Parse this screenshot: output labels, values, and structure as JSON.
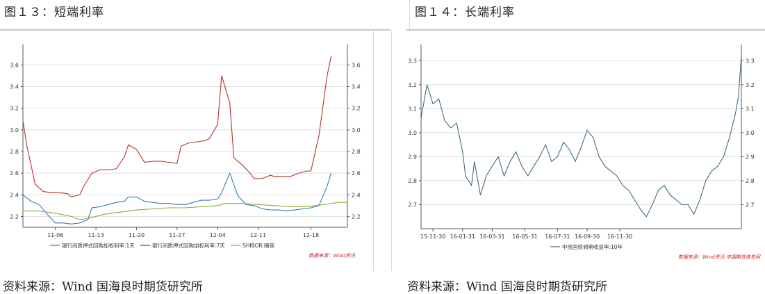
{
  "left": {
    "title": "图１３：短端利率",
    "source": "资料来源：Wind 国海良时期货研究所",
    "credit": "数据来源：Wind资讯"
  },
  "right": {
    "title": "图１４：长端利率",
    "source": "资料来源：Wind 国海良时期货研究所",
    "credit": "数据来源：Wind资讯  中国期货信息网"
  },
  "colors": {
    "series_blue": "#2e7fb6",
    "series_red": "#b5312b",
    "series_green": "#8ea83a",
    "bond": "#3f6b85",
    "grid": "#e1e1e1",
    "axis": "#555555",
    "rule": "#b9cfdc"
  },
  "chart_data": [
    {
      "type": "line",
      "title": "",
      "xlabel": "",
      "ylabel": "",
      "ylim": [
        2.1,
        3.75
      ],
      "yticks": [
        "2.2",
        "2.4",
        "2.6",
        "2.8",
        "3.0",
        "3.2",
        "3.4",
        "3.6"
      ],
      "xticks": [
        "11-06",
        "11-13",
        "11-20",
        "11-27",
        "12-04",
        "12-11",
        "12-18"
      ],
      "grid": true,
      "legend": "bottom",
      "series": [
        {
          "name": "银行间质押式回购加权利率:1天",
          "color": "#2e7fb6",
          "points": [
            [
              0,
              2.4
            ],
            [
              2,
              2.34
            ],
            [
              4,
              2.31
            ],
            [
              6,
              2.22
            ],
            [
              8,
              2.14
            ],
            [
              10,
              2.14
            ],
            [
              12,
              2.13
            ],
            [
              14,
              2.14
            ],
            [
              16,
              2.17
            ],
            [
              17,
              2.28
            ],
            [
              19,
              2.29
            ],
            [
              21,
              2.31
            ],
            [
              23,
              2.33
            ],
            [
              25,
              2.34
            ],
            [
              26,
              2.38
            ],
            [
              28,
              2.38
            ],
            [
              30,
              2.34
            ],
            [
              32,
              2.33
            ],
            [
              34,
              2.32
            ],
            [
              36,
              2.32
            ],
            [
              38,
              2.31
            ],
            [
              40,
              2.31
            ],
            [
              42,
              2.33
            ],
            [
              44,
              2.35
            ],
            [
              46,
              2.35
            ],
            [
              48,
              2.36
            ],
            [
              49,
              2.42
            ],
            [
              51,
              2.6
            ],
            [
              53,
              2.39
            ],
            [
              55,
              2.31
            ],
            [
              57,
              2.3
            ],
            [
              59,
              2.27
            ],
            [
              61,
              2.26
            ],
            [
              63,
              2.26
            ],
            [
              65,
              2.25
            ],
            [
              67,
              2.26
            ],
            [
              69,
              2.27
            ],
            [
              71,
              2.28
            ],
            [
              73,
              2.3
            ],
            [
              75,
              2.48
            ],
            [
              76,
              2.6
            ]
          ]
        },
        {
          "name": "银行间质押式回购加权利率:7天",
          "color": "#b5312b",
          "points": [
            [
              0,
              3.08
            ],
            [
              1,
              2.85
            ],
            [
              3,
              2.5
            ],
            [
              5,
              2.43
            ],
            [
              7,
              2.42
            ],
            [
              9,
              2.42
            ],
            [
              11,
              2.41
            ],
            [
              12,
              2.38
            ],
            [
              14,
              2.4
            ],
            [
              15,
              2.48
            ],
            [
              17,
              2.6
            ],
            [
              19,
              2.63
            ],
            [
              21,
              2.63
            ],
            [
              23,
              2.64
            ],
            [
              25,
              2.75
            ],
            [
              26,
              2.86
            ],
            [
              28,
              2.82
            ],
            [
              30,
              2.7
            ],
            [
              32,
              2.71
            ],
            [
              34,
              2.71
            ],
            [
              36,
              2.7
            ],
            [
              38,
              2.69
            ],
            [
              39,
              2.85
            ],
            [
              41,
              2.88
            ],
            [
              43,
              2.89
            ],
            [
              45,
              2.9
            ],
            [
              46,
              2.92
            ],
            [
              48,
              3.05
            ],
            [
              49,
              3.5
            ],
            [
              51,
              3.25
            ],
            [
              52,
              2.74
            ],
            [
              54,
              2.68
            ],
            [
              56,
              2.6
            ],
            [
              57,
              2.55
            ],
            [
              59,
              2.55
            ],
            [
              61,
              2.58
            ],
            [
              62,
              2.57
            ],
            [
              64,
              2.57
            ],
            [
              66,
              2.57
            ],
            [
              68,
              2.6
            ],
            [
              70,
              2.62
            ],
            [
              71,
              2.62
            ],
            [
              73,
              2.95
            ],
            [
              75,
              3.5
            ],
            [
              76,
              3.68
            ]
          ]
        },
        {
          "name": "SHIBOR:隔夜",
          "color": "#8ea83a",
          "points": [
            [
              0,
              2.25
            ],
            [
              4,
              2.25
            ],
            [
              8,
              2.23
            ],
            [
              12,
              2.2
            ],
            [
              14,
              2.17
            ],
            [
              16,
              2.18
            ],
            [
              20,
              2.22
            ],
            [
              24,
              2.24
            ],
            [
              28,
              2.26
            ],
            [
              32,
              2.27
            ],
            [
              36,
              2.28
            ],
            [
              40,
              2.28
            ],
            [
              44,
              2.29
            ],
            [
              48,
              2.3
            ],
            [
              50,
              2.32
            ],
            [
              54,
              2.32
            ],
            [
              58,
              2.31
            ],
            [
              62,
              2.3
            ],
            [
              66,
              2.29
            ],
            [
              70,
              2.29
            ],
            [
              74,
              2.31
            ],
            [
              78,
              2.33
            ],
            [
              80,
              2.33
            ]
          ]
        }
      ],
      "x_range": [
        0,
        80
      ],
      "xtick_positions": [
        8,
        18,
        28,
        38,
        48,
        58,
        71
      ]
    },
    {
      "type": "line",
      "title": "",
      "xlabel": "",
      "ylabel": "",
      "ylim": [
        2.6,
        3.35
      ],
      "yticks": [
        "2.7",
        "2.8",
        "2.9",
        "3.0",
        "3.1",
        "3.2",
        "3.3"
      ],
      "xticks": [
        "15-11-30",
        "16-01-31",
        "16-03-31",
        "16-05-31",
        "16-07-31",
        "16-09-30",
        "16-11-30"
      ],
      "grid": true,
      "legend": "bottom",
      "series": [
        {
          "name": "中债国债到期收益率:10年",
          "color": "#3f6b85",
          "points": [
            [
              0,
              3.06
            ],
            [
              2,
              3.2
            ],
            [
              4,
              3.12
            ],
            [
              6,
              3.14
            ],
            [
              8,
              3.05
            ],
            [
              10,
              3.02
            ],
            [
              12,
              3.04
            ],
            [
              14,
              2.92
            ],
            [
              15,
              2.82
            ],
            [
              17,
              2.78
            ],
            [
              18,
              2.88
            ],
            [
              20,
              2.74
            ],
            [
              22,
              2.82
            ],
            [
              24,
              2.86
            ],
            [
              26,
              2.9
            ],
            [
              28,
              2.82
            ],
            [
              30,
              2.88
            ],
            [
              32,
              2.92
            ],
            [
              34,
              2.86
            ],
            [
              36,
              2.82
            ],
            [
              38,
              2.86
            ],
            [
              40,
              2.9
            ],
            [
              42,
              2.95
            ],
            [
              44,
              2.88
            ],
            [
              46,
              2.9
            ],
            [
              48,
              2.96
            ],
            [
              50,
              2.93
            ],
            [
              52,
              2.88
            ],
            [
              54,
              2.94
            ],
            [
              56,
              3.01
            ],
            [
              58,
              2.98
            ],
            [
              60,
              2.9
            ],
            [
              62,
              2.86
            ],
            [
              64,
              2.84
            ],
            [
              66,
              2.82
            ],
            [
              68,
              2.78
            ],
            [
              70,
              2.76
            ],
            [
              72,
              2.72
            ],
            [
              74,
              2.68
            ],
            [
              76,
              2.65
            ],
            [
              78,
              2.7
            ],
            [
              80,
              2.76
            ],
            [
              82,
              2.78
            ],
            [
              84,
              2.74
            ],
            [
              86,
              2.72
            ],
            [
              88,
              2.7
            ],
            [
              90,
              2.7
            ],
            [
              92,
              2.66
            ],
            [
              94,
              2.72
            ],
            [
              96,
              2.8
            ],
            [
              98,
              2.84
            ],
            [
              100,
              2.86
            ],
            [
              102,
              2.9
            ],
            [
              104,
              2.98
            ],
            [
              106,
              3.08
            ],
            [
              107,
              3.15
            ],
            [
              108,
              3.32
            ]
          ]
        }
      ],
      "x_range": [
        0,
        108
      ],
      "xtick_positions": [
        4,
        14,
        24,
        35,
        46,
        56,
        67
      ]
    }
  ]
}
